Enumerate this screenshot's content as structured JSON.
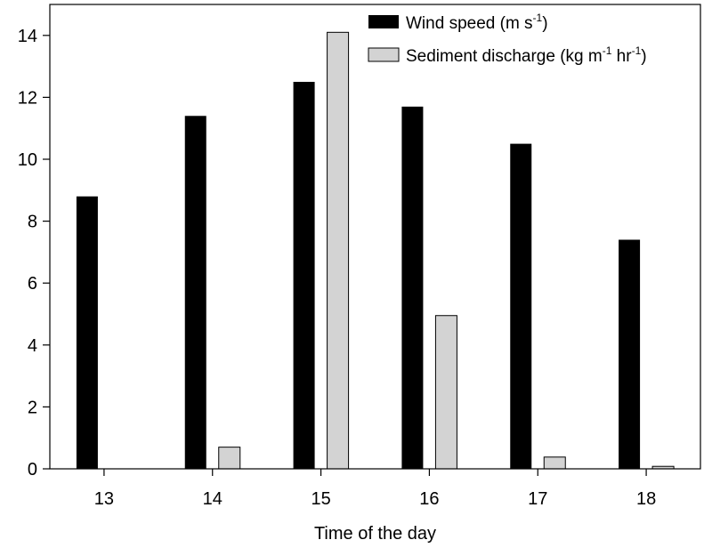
{
  "chart_data": {
    "type": "bar",
    "title": "",
    "xlabel": "Time of the day",
    "ylabel": "",
    "categories": [
      "13",
      "14",
      "15",
      "16",
      "17",
      "18"
    ],
    "ylim": [
      0,
      15
    ],
    "yticks": [
      0,
      2,
      4,
      6,
      8,
      10,
      12,
      14
    ],
    "grid": false,
    "legend_position": "top-right",
    "series": [
      {
        "name": "Wind speed (m s-1)",
        "legend_base": "Wind speed (m s",
        "legend_sup1": "-1",
        "legend_tail": ")",
        "color": "#000000",
        "values": [
          8.8,
          11.4,
          12.5,
          11.7,
          10.5,
          7.4
        ]
      },
      {
        "name": "Sediment discharge (kg m-1 hr-1)",
        "legend_base": "Sediment discharge (kg m",
        "legend_sup1": "-1",
        "legend_mid": " hr",
        "legend_sup2": "-1",
        "legend_tail": ")",
        "color": "#d3d3d3",
        "values": [
          0,
          0.7,
          14.1,
          4.95,
          0.38,
          0.08
        ]
      }
    ]
  }
}
